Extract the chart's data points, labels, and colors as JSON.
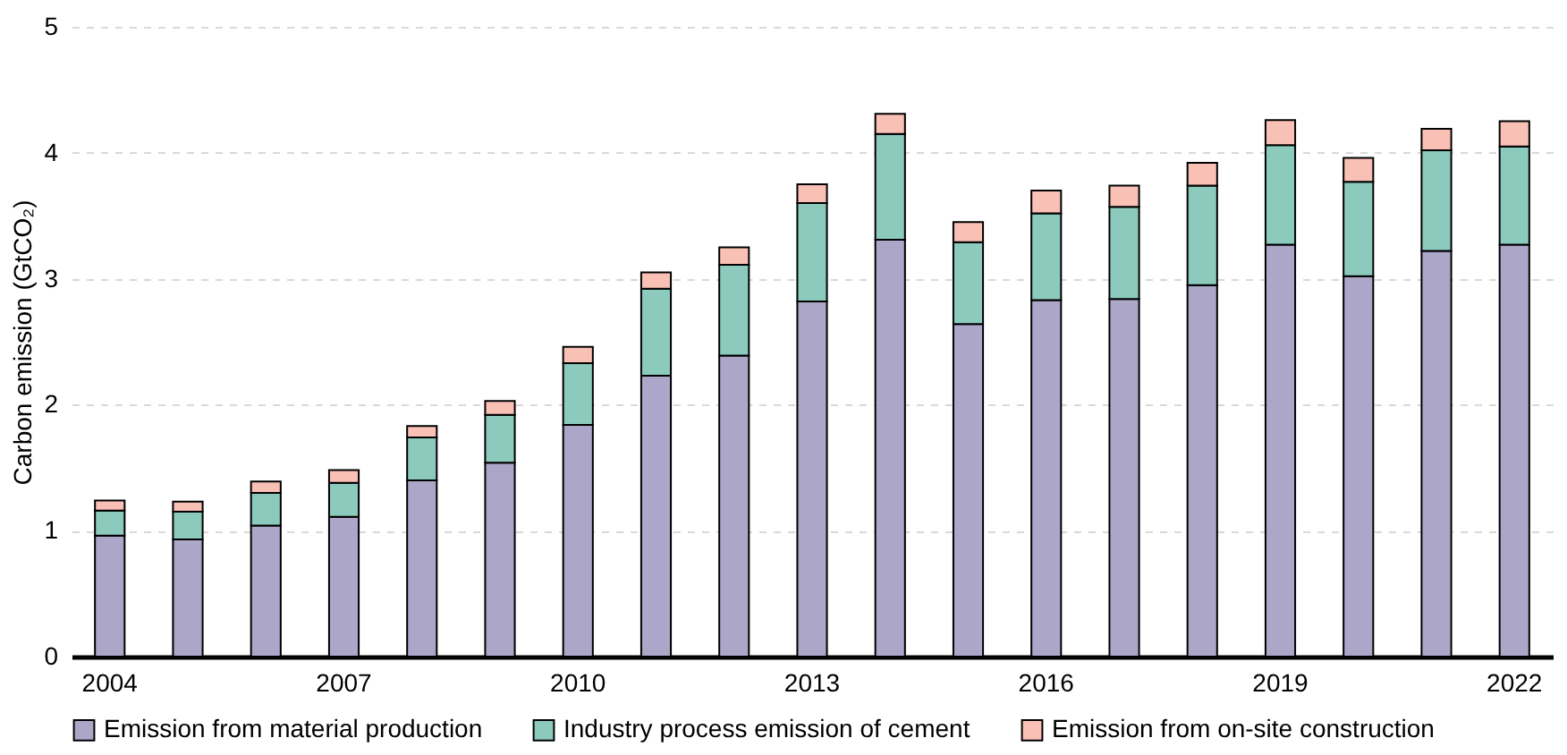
{
  "chart_data": {
    "type": "bar",
    "stacked": true,
    "ylabel": "Carbon emission (GtCO₂)",
    "categories": [
      "2004",
      null,
      null,
      "2007",
      null,
      null,
      "2010",
      null,
      null,
      "2013",
      null,
      null,
      "2016",
      null,
      null,
      "2019",
      null,
      null,
      "2022"
    ],
    "series": [
      {
        "name": "Emission from material production",
        "color": "#aca6c8",
        "values": [
          0.96,
          0.93,
          1.04,
          1.11,
          1.4,
          1.54,
          1.84,
          2.23,
          2.39,
          2.82,
          3.31,
          2.64,
          2.83,
          2.84,
          2.95,
          3.27,
          3.02,
          3.22,
          3.27
        ]
      },
      {
        "name": "Industry process emission of cement",
        "color": "#8ccabd",
        "values": [
          0.2,
          0.22,
          0.26,
          0.27,
          0.34,
          0.38,
          0.49,
          0.69,
          0.72,
          0.78,
          0.84,
          0.65,
          0.69,
          0.73,
          0.79,
          0.79,
          0.75,
          0.8,
          0.78
        ]
      },
      {
        "name": "Emission from on-site construction",
        "color": "#f9c0b6",
        "values": [
          0.08,
          0.08,
          0.09,
          0.1,
          0.09,
          0.11,
          0.13,
          0.13,
          0.14,
          0.15,
          0.16,
          0.16,
          0.18,
          0.17,
          0.18,
          0.2,
          0.19,
          0.17,
          0.2
        ]
      }
    ],
    "ylim": [
      0,
      5
    ],
    "yticks": [
      0,
      1,
      2,
      3,
      4,
      5
    ],
    "grid": "y",
    "legend": "bottom"
  }
}
